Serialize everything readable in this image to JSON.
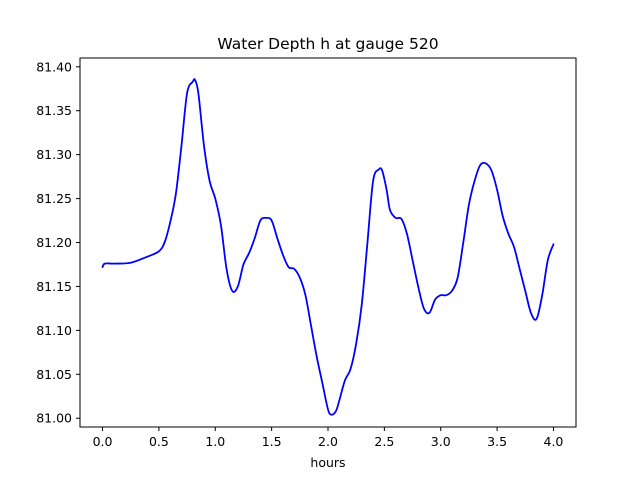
{
  "chart_data": {
    "type": "line",
    "title": "Water Depth h at gauge 520",
    "xlabel": "hours",
    "ylabel": "",
    "xlim": [
      -0.2,
      4.2
    ],
    "ylim": [
      80.99,
      81.41
    ],
    "xticks": [
      0.0,
      0.5,
      1.0,
      1.5,
      2.0,
      2.5,
      3.0,
      3.5,
      4.0
    ],
    "xtick_labels": [
      "0.0",
      "0.5",
      "1.0",
      "1.5",
      "2.0",
      "2.5",
      "3.0",
      "3.5",
      "4.0"
    ],
    "yticks": [
      81.0,
      81.05,
      81.1,
      81.15,
      81.2,
      81.25,
      81.3,
      81.35,
      81.4
    ],
    "ytick_labels": [
      "81.00",
      "81.05",
      "81.10",
      "81.15",
      "81.20",
      "81.25",
      "81.30",
      "81.35",
      "81.40"
    ],
    "grid": false,
    "legend": "none",
    "series": [
      {
        "color": "#0000ff",
        "x": [
          0.0,
          0.02,
          0.1,
          0.25,
          0.4,
          0.5,
          0.55,
          0.6,
          0.65,
          0.7,
          0.75,
          0.8,
          0.82,
          0.85,
          0.9,
          0.95,
          1.0,
          1.05,
          1.1,
          1.15,
          1.2,
          1.25,
          1.3,
          1.35,
          1.4,
          1.45,
          1.5,
          1.55,
          1.6,
          1.65,
          1.7,
          1.75,
          1.8,
          1.85,
          1.9,
          1.95,
          2.0,
          2.03,
          2.07,
          2.1,
          2.15,
          2.2,
          2.25,
          2.3,
          2.35,
          2.4,
          2.45,
          2.48,
          2.52,
          2.55,
          2.6,
          2.65,
          2.7,
          2.75,
          2.8,
          2.85,
          2.9,
          2.95,
          3.0,
          3.05,
          3.1,
          3.15,
          3.2,
          3.25,
          3.3,
          3.35,
          3.4,
          3.45,
          3.5,
          3.55,
          3.6,
          3.65,
          3.7,
          3.75,
          3.8,
          3.85,
          3.9,
          3.95,
          4.0
        ],
        "y": [
          81.172,
          81.176,
          81.176,
          81.177,
          81.184,
          81.19,
          81.2,
          81.223,
          81.255,
          81.31,
          81.37,
          81.383,
          81.385,
          81.37,
          81.31,
          81.27,
          81.25,
          81.22,
          81.17,
          81.145,
          81.15,
          81.175,
          81.188,
          81.205,
          81.225,
          81.228,
          81.225,
          81.205,
          81.186,
          81.172,
          81.17,
          81.16,
          81.14,
          81.105,
          81.07,
          81.04,
          81.01,
          81.004,
          81.008,
          81.02,
          81.043,
          81.056,
          81.085,
          81.13,
          81.2,
          81.27,
          81.283,
          81.282,
          81.26,
          81.237,
          81.228,
          81.227,
          81.21,
          81.18,
          81.15,
          81.125,
          81.12,
          81.135,
          81.14,
          81.14,
          81.145,
          81.16,
          81.2,
          81.243,
          81.27,
          81.288,
          81.29,
          81.282,
          81.26,
          81.23,
          81.21,
          81.195,
          81.17,
          81.145,
          81.12,
          81.113,
          81.14,
          81.18,
          81.198
        ]
      }
    ]
  }
}
